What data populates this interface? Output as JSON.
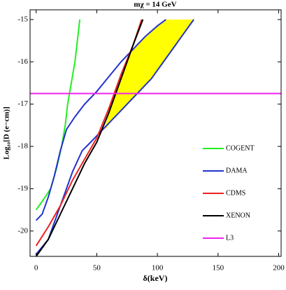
{
  "chart_data": {
    "type": "line",
    "title": "mχ = 14 GeV",
    "x_label": "δ(keV)",
    "y_label": "Log₁₀[D (e−cm)]",
    "xlim": [
      -5,
      202
    ],
    "ylim": [
      -20.6,
      -14.77
    ],
    "xticks": [
      0,
      50,
      100,
      150,
      200
    ],
    "yticks": [
      -15,
      -16,
      -17,
      -18,
      -19,
      -20
    ],
    "regions": [
      {
        "color": "#ffff00",
        "x": [
          57,
          60,
          65,
          70,
          72,
          80,
          90,
          100,
          107,
          130,
          125,
          115,
          105,
          95,
          85,
          75,
          65,
          57
        ],
        "values": [
          -17.6,
          -17.1,
          -16.7,
          -16.3,
          -16.1,
          -15.7,
          -15.4,
          -15.15,
          -15,
          -15,
          -15.2,
          -15.6,
          -16.0,
          -16.4,
          -16.7,
          -17.0,
          -17.3,
          -17.6
        ]
      }
    ],
    "series": [
      {
        "name": "COGENT",
        "color": "#22ee22",
        "x": [
          0,
          5,
          12,
          17,
          21,
          24,
          26,
          29,
          32,
          34,
          36
        ],
        "values": [
          -19.5,
          -19.3,
          -19,
          -18.5,
          -18,
          -17.5,
          -17,
          -16.5,
          -16,
          -15.5,
          -15
        ]
      },
      {
        "name": "DAMA",
        "color": "#2233cc",
        "x": [
          0,
          5,
          10,
          15,
          20,
          25,
          32,
          40,
          50,
          60,
          70,
          80,
          90,
          100,
          107,
          null,
          0,
          10,
          20,
          30,
          38,
          45,
          55,
          65,
          75,
          85,
          95,
          105,
          115,
          125,
          130
        ],
        "values": [
          -19.75,
          -19.6,
          -19.2,
          -18.7,
          -18.1,
          -17.6,
          -17.3,
          -17.0,
          -16.7,
          -16.35,
          -16.0,
          -15.7,
          -15.4,
          -15.15,
          -15,
          null,
          -20.55,
          -20.2,
          -19.4,
          -18.6,
          -18.1,
          -17.9,
          -17.6,
          -17.3,
          -17.0,
          -16.7,
          -16.4,
          -16.0,
          -15.6,
          -15.2,
          -15
        ]
      },
      {
        "name": "CDMS",
        "color": "#ee2222",
        "x": [
          0,
          10,
          20,
          30,
          40,
          50,
          60,
          70,
          80,
          87
        ],
        "values": [
          -20.35,
          -19.9,
          -19.4,
          -18.8,
          -18.3,
          -17.8,
          -17.1,
          -16.3,
          -15.6,
          -15
        ]
      },
      {
        "name": "XENON",
        "color": "#000000",
        "x": [
          0,
          10,
          20,
          30,
          40,
          50,
          60,
          70,
          80,
          88
        ],
        "values": [
          -20.6,
          -20.2,
          -19.6,
          -19.0,
          -18.4,
          -17.9,
          -17.2,
          -16.4,
          -15.6,
          -15
        ]
      },
      {
        "name": "L3",
        "color": "#ee22ee",
        "x": [
          -5,
          202
        ],
        "values": [
          -16.75,
          -16.75
        ]
      }
    ]
  }
}
